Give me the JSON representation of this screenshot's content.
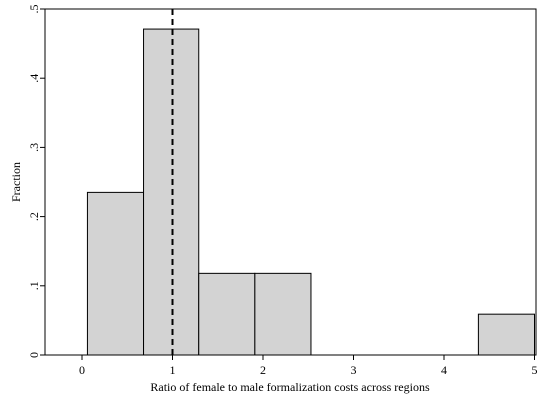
{
  "chart_data": {
    "type": "bar",
    "title": "",
    "xlabel": "Ratio of female to male formalization costs across regions",
    "ylabel": "Fraction",
    "xlim": [
      -0.3,
      5.05
    ],
    "ylim": [
      0,
      0.5
    ],
    "x_ticks": [
      "0",
      "1",
      "2",
      "3",
      "4",
      "5"
    ],
    "y_ticks": [
      ".5",
      ".4",
      ".3",
      ".2",
      ".1",
      "0"
    ],
    "bins": [
      {
        "x0": 0.06,
        "x1": 0.68,
        "value": 0.235
      },
      {
        "x0": 0.68,
        "x1": 1.29,
        "value": 0.471
      },
      {
        "x0": 1.29,
        "x1": 1.91,
        "value": 0.118
      },
      {
        "x0": 1.91,
        "x1": 2.53,
        "value": 0.118
      },
      {
        "x0": 4.38,
        "x1": 5.0,
        "value": 0.059
      }
    ],
    "reference_line": {
      "x": 1,
      "style": "dashed"
    },
    "grid": false,
    "bar_color": "#d3d3d3",
    "bar_edge": "#000000"
  }
}
